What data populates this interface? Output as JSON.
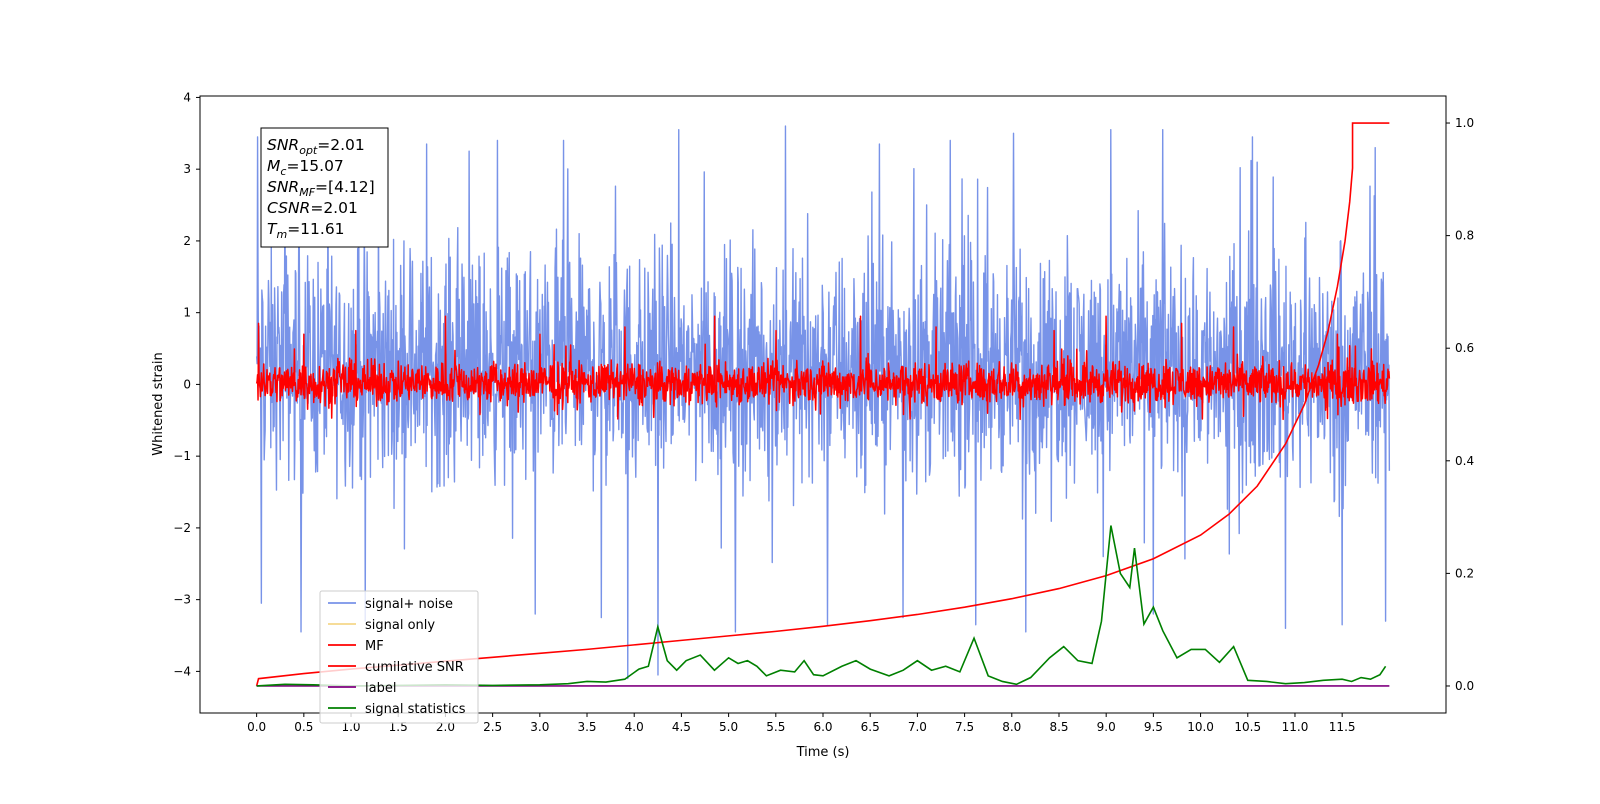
{
  "chart_data": {
    "type": "line",
    "xlabel": "Time (s)",
    "ylabel": "Whitened strain",
    "xlim": [
      -0.6,
      12.6
    ],
    "ylim": [
      -4.58,
      4.02
    ],
    "y2lim": [
      -0.048,
      1.048
    ],
    "x_ticks": [
      0.0,
      0.5,
      1.0,
      1.5,
      2.0,
      2.5,
      3.0,
      3.5,
      4.0,
      4.5,
      5.0,
      5.5,
      6.0,
      6.5,
      7.0,
      7.5,
      8.0,
      8.5,
      9.0,
      9.5,
      10.0,
      10.5,
      11.0,
      11.5
    ],
    "x_tick_labels": [
      "0.0",
      "0.5",
      "1.0",
      "1.5",
      "2.0",
      "2.5",
      "3.0",
      "3.5",
      "4.0",
      "4.5",
      "5.0",
      "5.5",
      "6.0",
      "6.5",
      "7.0",
      "7.5",
      "8.0",
      "8.5",
      "9.0",
      "9.5",
      "10.0",
      "10.5",
      "11.0",
      "11.5"
    ],
    "y_ticks": [
      -4,
      -3,
      -2,
      -1,
      0,
      1,
      2,
      3,
      4
    ],
    "y_tick_labels": [
      "−4",
      "−3",
      "−2",
      "−1",
      "0",
      "1",
      "2",
      "3",
      "4"
    ],
    "y2_ticks": [
      0.0,
      0.2,
      0.4,
      0.6,
      0.8,
      1.0
    ],
    "y2_tick_labels": [
      "0.0",
      "0.2",
      "0.4",
      "0.6",
      "0.8",
      "1.0"
    ],
    "grid": false,
    "legend_position": "bottom-left",
    "annotation": {
      "lines": [
        {
          "sym": "SNR",
          "sub": "opt",
          "text": "=2.01"
        },
        {
          "sym": "M",
          "sub": "c",
          "text": "=15.07"
        },
        {
          "sym": "SNR",
          "sub": "MF",
          "text": "=[4.12]"
        },
        {
          "sym": "CSNR",
          "sub": "",
          "text": "=2.01"
        },
        {
          "sym": "T",
          "sub": "m",
          "text": "=11.61"
        }
      ]
    },
    "series": [
      {
        "name": "signal+ noise",
        "axis": "left",
        "color": "#7893e8",
        "kind": "noise",
        "x_range": [
          0.0,
          12.0
        ],
        "center": 0.05,
        "envelope": [
          -2.0,
          2.6
        ],
        "spikes": [
          {
            "x": 0.01,
            "y": 3.45
          },
          {
            "x": 0.05,
            "y": -3.05
          },
          {
            "x": 0.3,
            "y": 3.05
          },
          {
            "x": 0.47,
            "y": -3.45
          },
          {
            "x": 1.08,
            "y": 3.45
          },
          {
            "x": 1.15,
            "y": -3.3
          },
          {
            "x": 1.8,
            "y": 3.35
          },
          {
            "x": 2.25,
            "y": 3.25
          },
          {
            "x": 2.55,
            "y": 3.4
          },
          {
            "x": 2.95,
            "y": -3.2
          },
          {
            "x": 3.25,
            "y": 3.4
          },
          {
            "x": 3.65,
            "y": -3.25
          },
          {
            "x": 3.93,
            "y": -4.1
          },
          {
            "x": 4.25,
            "y": -4.05
          },
          {
            "x": 4.47,
            "y": 3.55
          },
          {
            "x": 5.07,
            "y": -3.45
          },
          {
            "x": 5.6,
            "y": 3.6
          },
          {
            "x": 6.05,
            "y": -3.35
          },
          {
            "x": 6.6,
            "y": 3.35
          },
          {
            "x": 6.85,
            "y": -3.25
          },
          {
            "x": 7.35,
            "y": 3.4
          },
          {
            "x": 7.62,
            "y": -3.35
          },
          {
            "x": 8.02,
            "y": 3.5
          },
          {
            "x": 8.15,
            "y": -3.45
          },
          {
            "x": 9.05,
            "y": 3.55
          },
          {
            "x": 9.6,
            "y": 3.55
          },
          {
            "x": 9.5,
            "y": -3.2
          },
          {
            "x": 10.55,
            "y": 3.45
          },
          {
            "x": 10.9,
            "y": -3.4
          },
          {
            "x": 11.5,
            "y": -3.35
          },
          {
            "x": 11.85,
            "y": 3.3
          },
          {
            "x": 11.96,
            "y": -3.3
          }
        ]
      },
      {
        "name": "signal only",
        "axis": "left",
        "color": "#f5d78a",
        "kind": "hidden",
        "x": [],
        "y": []
      },
      {
        "name": "MF",
        "axis": "left",
        "color": "#ff0000",
        "kind": "noise",
        "x_range": [
          0.0,
          12.0
        ],
        "center": 0.0,
        "envelope": [
          -0.4,
          0.45
        ],
        "spikes": [
          {
            "x": 0.02,
            "y": 0.85
          },
          {
            "x": 0.5,
            "y": 0.7
          },
          {
            "x": 1.05,
            "y": 0.75
          },
          {
            "x": 2.0,
            "y": 0.95
          },
          {
            "x": 3.0,
            "y": 0.7
          },
          {
            "x": 3.9,
            "y": 0.8
          },
          {
            "x": 4.85,
            "y": 0.95
          },
          {
            "x": 5.5,
            "y": 0.75
          },
          {
            "x": 6.4,
            "y": 0.95
          },
          {
            "x": 7.2,
            "y": 0.8
          },
          {
            "x": 8.45,
            "y": 0.75
          },
          {
            "x": 9.0,
            "y": 0.95
          },
          {
            "x": 9.8,
            "y": 0.85
          },
          {
            "x": 10.35,
            "y": 0.8
          },
          {
            "x": 11.45,
            "y": 0.7
          }
        ]
      },
      {
        "name": "cumilative SNR",
        "axis": "right",
        "color": "#ff0000",
        "kind": "line",
        "x": [
          0.0,
          0.02,
          0.5,
          1.0,
          1.5,
          2.0,
          2.5,
          3.0,
          3.5,
          4.0,
          4.5,
          5.0,
          5.5,
          6.0,
          6.5,
          7.0,
          7.5,
          8.0,
          8.5,
          9.0,
          9.5,
          10.0,
          10.3,
          10.6,
          10.9,
          11.1,
          11.25,
          11.35,
          11.45,
          11.53,
          11.58,
          11.61,
          11.61,
          12.0
        ],
        "y": [
          0.0,
          0.013,
          0.022,
          0.03,
          0.037,
          0.044,
          0.051,
          0.058,
          0.065,
          0.073,
          0.081,
          0.089,
          0.097,
          0.106,
          0.116,
          0.127,
          0.14,
          0.155,
          0.173,
          0.196,
          0.226,
          0.268,
          0.305,
          0.355,
          0.43,
          0.5,
          0.57,
          0.63,
          0.71,
          0.79,
          0.86,
          0.92,
          1.0,
          1.0
        ]
      },
      {
        "name": "label",
        "axis": "right",
        "color": "#800080",
        "kind": "line",
        "x": [
          0.0,
          12.0
        ],
        "y": [
          0.0,
          0.0
        ]
      },
      {
        "name": "signal statistics",
        "axis": "right",
        "color": "#008000",
        "kind": "line",
        "x": [
          0.0,
          0.3,
          0.6,
          1.0,
          1.5,
          2.0,
          2.5,
          3.0,
          3.3,
          3.5,
          3.7,
          3.9,
          4.05,
          4.15,
          4.25,
          4.35,
          4.45,
          4.55,
          4.7,
          4.85,
          5.0,
          5.1,
          5.2,
          5.3,
          5.4,
          5.55,
          5.7,
          5.8,
          5.9,
          6.0,
          6.2,
          6.35,
          6.5,
          6.7,
          6.85,
          7.0,
          7.15,
          7.3,
          7.45,
          7.6,
          7.75,
          7.9,
          8.05,
          8.2,
          8.4,
          8.55,
          8.7,
          8.85,
          8.95,
          9.05,
          9.15,
          9.25,
          9.3,
          9.4,
          9.5,
          9.6,
          9.75,
          9.9,
          10.05,
          10.2,
          10.35,
          10.5,
          10.7,
          10.9,
          11.1,
          11.3,
          11.5,
          11.6,
          11.7,
          11.8,
          11.9,
          11.96
        ],
        "y": [
          0.0,
          0.003,
          0.002,
          0.0,
          0.001,
          0.002,
          0.001,
          0.002,
          0.004,
          0.008,
          0.007,
          0.012,
          0.03,
          0.035,
          0.105,
          0.045,
          0.028,
          0.045,
          0.055,
          0.028,
          0.05,
          0.04,
          0.045,
          0.035,
          0.018,
          0.028,
          0.025,
          0.045,
          0.02,
          0.018,
          0.035,
          0.045,
          0.03,
          0.018,
          0.028,
          0.045,
          0.028,
          0.035,
          0.025,
          0.085,
          0.018,
          0.008,
          0.003,
          0.015,
          0.05,
          0.07,
          0.045,
          0.04,
          0.115,
          0.285,
          0.2,
          0.175,
          0.245,
          0.11,
          0.14,
          0.098,
          0.05,
          0.065,
          0.065,
          0.042,
          0.07,
          0.01,
          0.008,
          0.004,
          0.006,
          0.01,
          0.012,
          0.008,
          0.015,
          0.012,
          0.02,
          0.035
        ]
      }
    ]
  }
}
